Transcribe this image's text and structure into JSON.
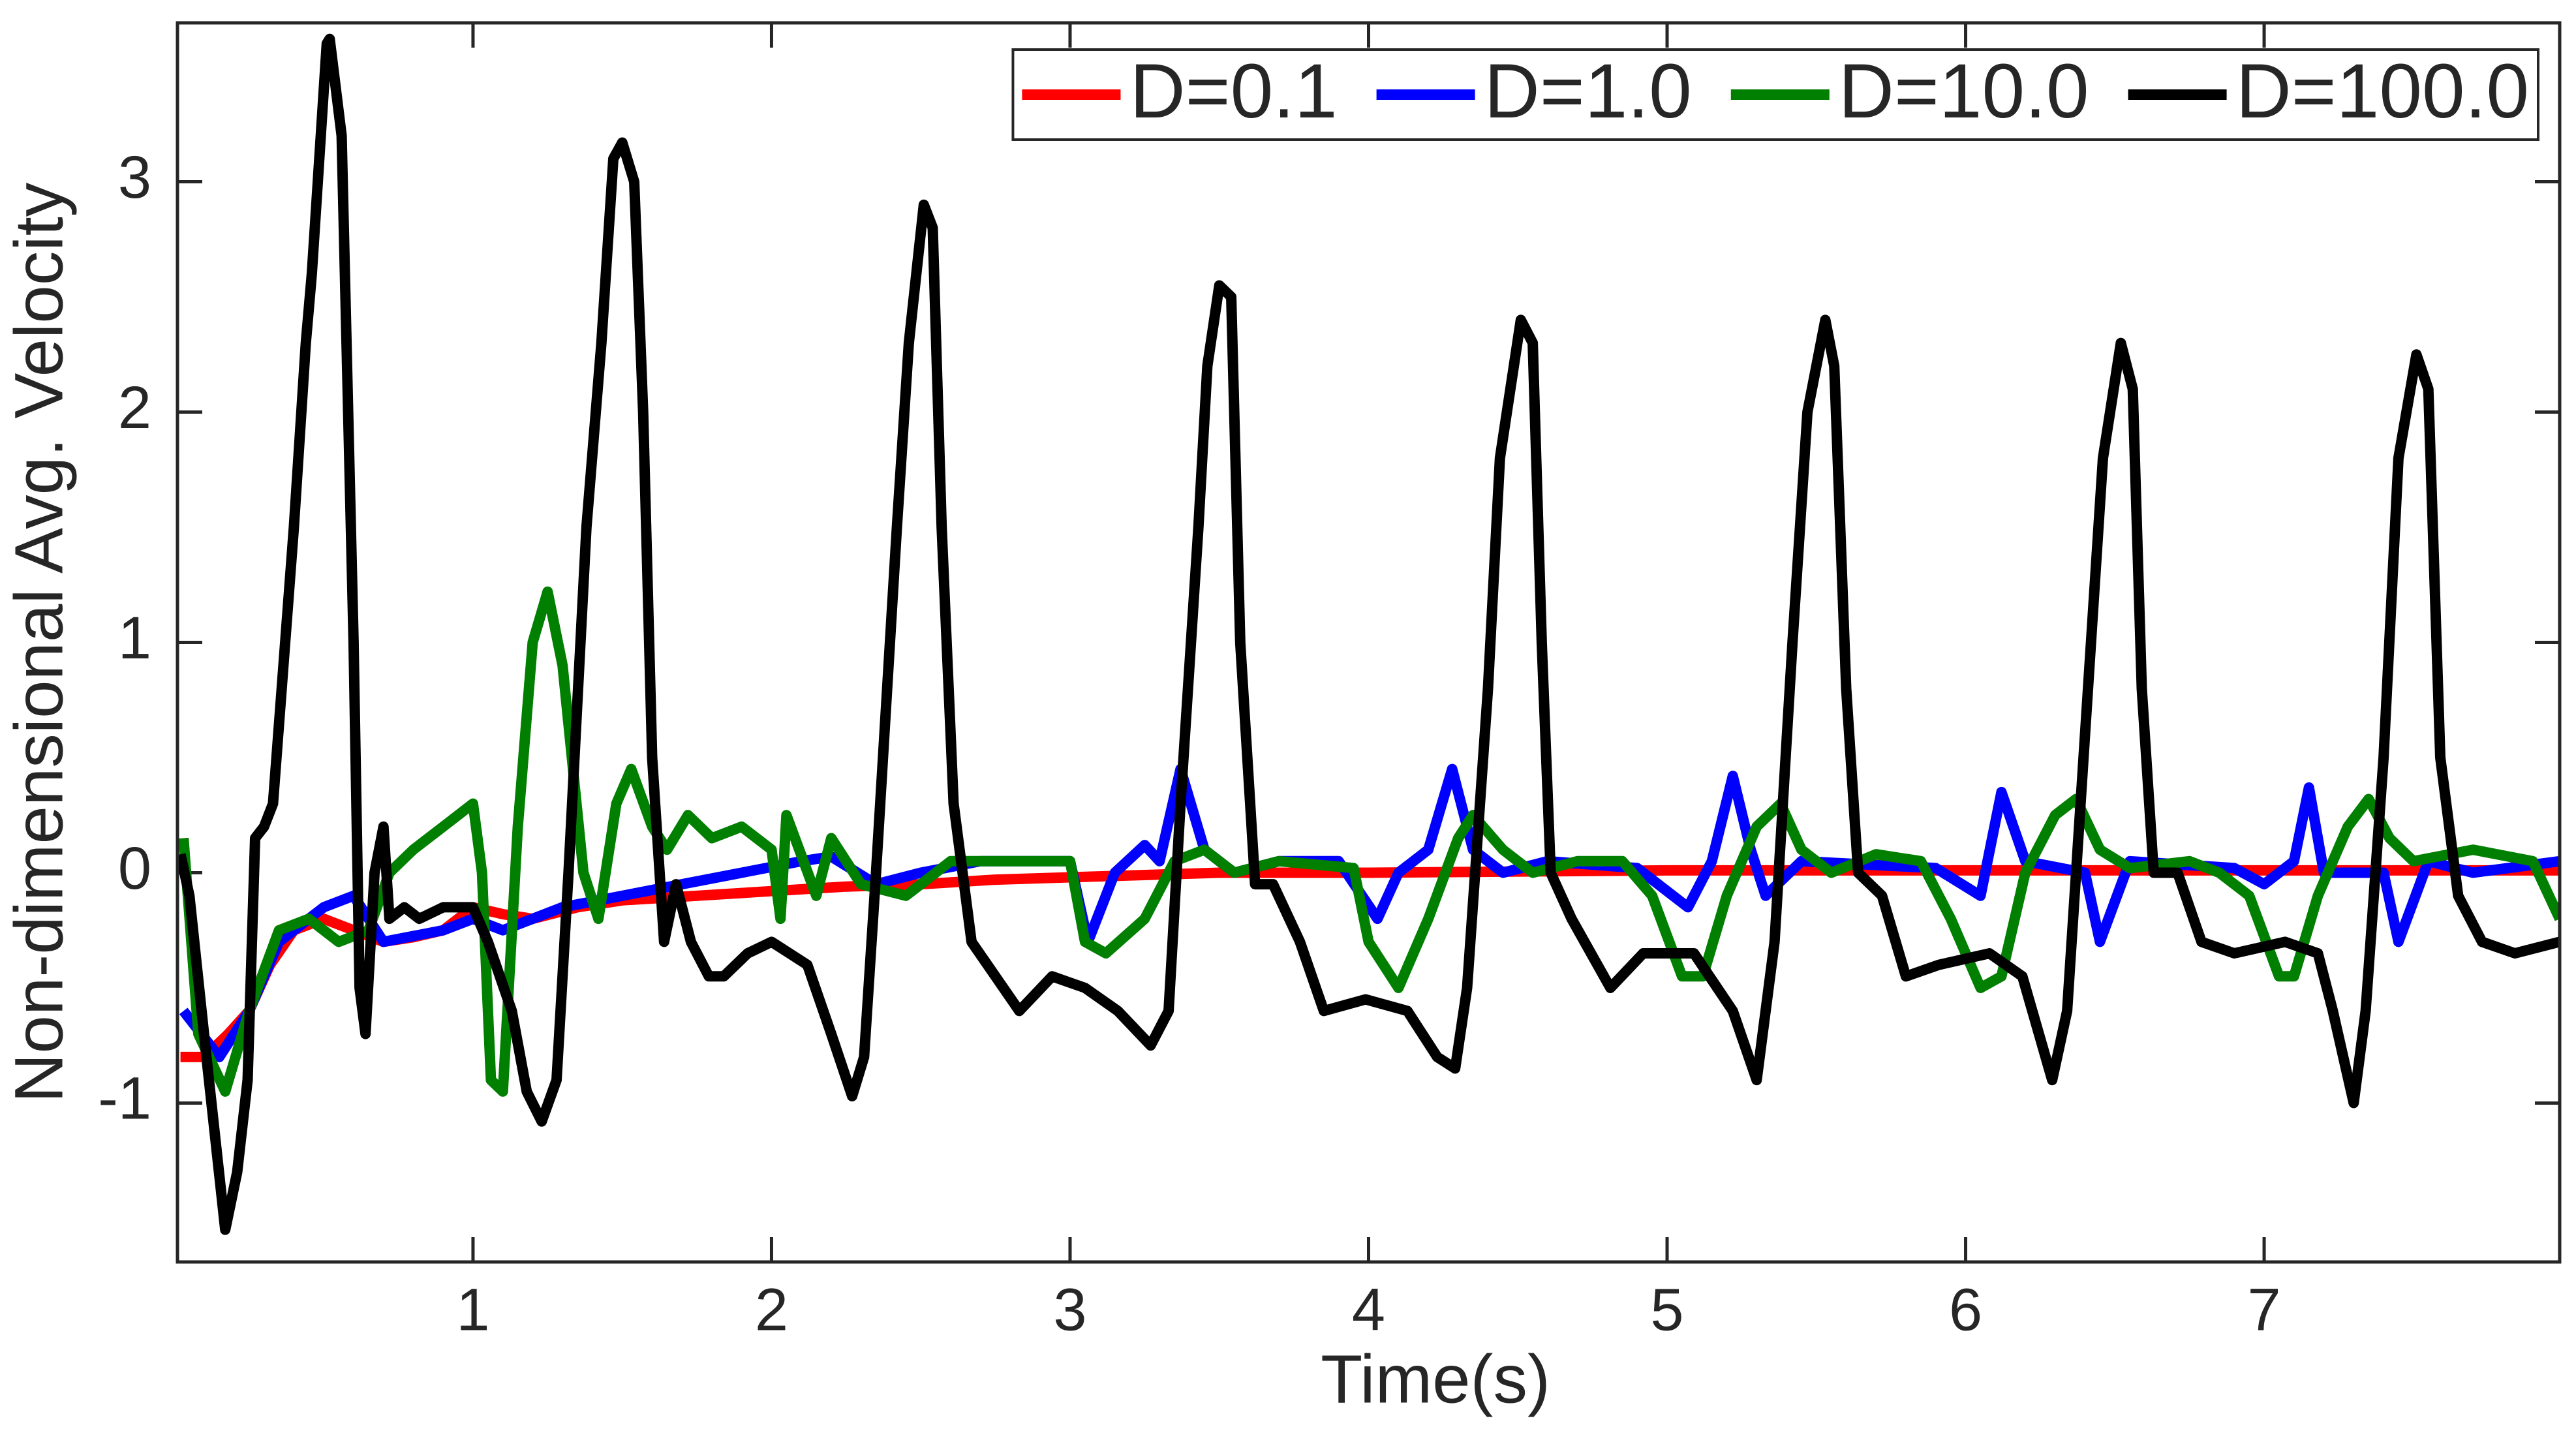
{
  "chart_data": {
    "type": "line",
    "xlabel": "Time(s)",
    "ylabel": "Non-dimensional Avg. Velocity",
    "xlim": [
      0.01,
      7.99
    ],
    "ylim": [
      -1.69,
      3.69
    ],
    "xticks": [
      1,
      2,
      3,
      4,
      5,
      6,
      7
    ],
    "yticks": [
      -1,
      0,
      1,
      2,
      3
    ],
    "grid": false,
    "legend": "upper right",
    "series": [
      {
        "name": "D=0.1",
        "color": "#ff0000",
        "x": [
          0.02,
          0.1,
          0.18,
          0.25,
          0.32,
          0.4,
          0.5,
          0.6,
          0.7,
          0.8,
          0.9,
          1.0,
          1.1,
          1.2,
          1.35,
          1.5,
          1.75,
          2.0,
          2.25,
          2.5,
          2.75,
          3.0,
          3.5,
          4.0,
          5.0,
          6.0,
          7.0,
          7.99
        ],
        "values": [
          -0.8,
          -0.8,
          -0.7,
          -0.6,
          -0.4,
          -0.25,
          -0.2,
          -0.25,
          -0.3,
          -0.28,
          -0.25,
          -0.15,
          -0.18,
          -0.2,
          -0.15,
          -0.12,
          -0.1,
          -0.08,
          -0.06,
          -0.05,
          -0.03,
          -0.02,
          0,
          0,
          0.01,
          0.01,
          0.01,
          0.01
        ]
      },
      {
        "name": "D=1.0",
        "color": "#0000ff",
        "x": [
          0.03,
          0.15,
          0.25,
          0.35,
          0.5,
          0.6,
          0.7,
          0.9,
          1.0,
          1.1,
          1.3,
          1.5,
          1.7,
          1.9,
          2.1,
          2.2,
          2.35,
          2.5,
          2.7,
          3.0,
          3.06,
          3.15,
          3.25,
          3.3,
          3.37,
          3.45,
          3.55,
          3.7,
          3.9,
          4.03,
          4.1,
          4.2,
          4.28,
          4.35,
          4.45,
          4.6,
          4.9,
          5.07,
          5.15,
          5.22,
          5.28,
          5.33,
          5.45,
          5.9,
          6.05,
          6.12,
          6.2,
          6.4,
          6.45,
          6.55,
          6.9,
          7.0,
          7.1,
          7.15,
          7.2,
          7.4,
          7.45,
          7.55,
          7.7,
          7.99
        ],
        "values": [
          -0.6,
          -0.8,
          -0.6,
          -0.3,
          -0.15,
          -0.1,
          -0.3,
          -0.25,
          -0.2,
          -0.25,
          -0.15,
          -0.1,
          -0.05,
          0,
          0.05,
          0.07,
          -0.05,
          0,
          0.05,
          0.05,
          -0.3,
          0,
          0.12,
          0.05,
          0.45,
          0.1,
          0,
          0.05,
          0.05,
          -0.2,
          0,
          0.1,
          0.45,
          0.1,
          0,
          0.05,
          0.02,
          -0.15,
          0.05,
          0.42,
          0.1,
          -0.1,
          0.05,
          0.02,
          -0.1,
          0.35,
          0.05,
          0,
          -0.3,
          0.05,
          0.02,
          -0.05,
          0.05,
          0.37,
          0,
          0,
          -0.3,
          0.05,
          0,
          0.05
        ]
      },
      {
        "name": "D=10.0",
        "color": "#007f00",
        "x": [
          0.03,
          0.08,
          0.17,
          0.25,
          0.35,
          0.45,
          0.55,
          0.65,
          0.72,
          0.8,
          0.9,
          1.0,
          1.03,
          1.06,
          1.1,
          1.15,
          1.2,
          1.25,
          1.3,
          1.37,
          1.42,
          1.48,
          1.53,
          1.6,
          1.65,
          1.72,
          1.8,
          1.9,
          2.0,
          2.03,
          2.05,
          2.15,
          2.2,
          2.3,
          2.45,
          2.6,
          2.8,
          3.0,
          3.05,
          3.12,
          3.25,
          3.35,
          3.45,
          3.55,
          3.7,
          3.95,
          4.0,
          4.1,
          4.2,
          4.3,
          4.35,
          4.45,
          4.55,
          4.7,
          4.85,
          4.95,
          5.05,
          5.12,
          5.2,
          5.3,
          5.38,
          5.45,
          5.55,
          5.7,
          5.85,
          5.95,
          6.05,
          6.12,
          6.2,
          6.3,
          6.37,
          6.45,
          6.55,
          6.75,
          6.85,
          6.95,
          7.05,
          7.1,
          7.18,
          7.28,
          7.35,
          7.42,
          7.5,
          7.7,
          7.9,
          7.99
        ],
        "values": [
          0.15,
          -0.7,
          -0.95,
          -0.6,
          -0.25,
          -0.2,
          -0.3,
          -0.25,
          0,
          0.1,
          0.2,
          0.3,
          0,
          -0.9,
          -0.95,
          0.2,
          1,
          1.22,
          0.9,
          0,
          -0.2,
          0.3,
          0.45,
          0.2,
          0.1,
          0.25,
          0.15,
          0.2,
          0.1,
          -0.2,
          0.25,
          -0.1,
          0.15,
          -0.05,
          -0.1,
          0.05,
          0.05,
          0.05,
          -0.3,
          -0.35,
          -0.2,
          0.05,
          0.1,
          0,
          0.05,
          0.02,
          -0.3,
          -0.5,
          -0.2,
          0.15,
          0.25,
          0.1,
          0,
          0.05,
          0.05,
          -0.1,
          -0.45,
          -0.45,
          -0.1,
          0.2,
          0.3,
          0.1,
          0,
          0.08,
          0.05,
          -0.2,
          -0.5,
          -0.45,
          0,
          0.25,
          0.32,
          0.1,
          0.02,
          0.05,
          0,
          -0.1,
          -0.45,
          -0.45,
          -0.1,
          0.2,
          0.32,
          0.15,
          0.05,
          0.1,
          0.05,
          -0.2
        ]
      },
      {
        "name": "D=100.0",
        "color": "#000000",
        "x": [
          0.02,
          0.05,
          0.107,
          0.17,
          0.21,
          0.245,
          0.27,
          0.3,
          0.33,
          0.4,
          0.44,
          0.46,
          0.51,
          0.52,
          0.56,
          0.6,
          0.62,
          0.64,
          0.67,
          0.7,
          0.72,
          0.77,
          0.82,
          0.9,
          1.0,
          1.05,
          1.13,
          1.18,
          1.23,
          1.28,
          1.32,
          1.38,
          1.43,
          1.47,
          1.5,
          1.54,
          1.57,
          1.6,
          1.64,
          1.68,
          1.73,
          1.79,
          1.84,
          1.92,
          2.0,
          2.12,
          2.2,
          2.27,
          2.31,
          2.35,
          2.42,
          2.46,
          2.51,
          2.54,
          2.57,
          2.61,
          2.67,
          2.83,
          2.94,
          3.05,
          3.16,
          3.27,
          3.33,
          3.37,
          3.43,
          3.46,
          3.5,
          3.54,
          3.57,
          3.62,
          3.68,
          3.77,
          3.85,
          3.99,
          4.13,
          4.23,
          4.29,
          4.33,
          4.4,
          4.44,
          4.51,
          4.55,
          4.58,
          4.61,
          4.68,
          4.81,
          4.92,
          5.09,
          5.22,
          5.3,
          5.36,
          5.42,
          5.47,
          5.53,
          5.56,
          5.6,
          5.64,
          5.72,
          5.8,
          5.91,
          6.08,
          6.19,
          6.29,
          6.34,
          6.41,
          6.46,
          6.52,
          6.56,
          6.59,
          6.63,
          6.71,
          6.79,
          6.9,
          7.07,
          7.18,
          7.23,
          7.3,
          7.34,
          7.4,
          7.45,
          7.51,
          7.55,
          7.59,
          7.65,
          7.73,
          7.84,
          7.99
        ],
        "values": [
          0.08,
          -0.1,
          -0.8,
          -1.55,
          -1.3,
          -0.9,
          0.15,
          0.2,
          0.3,
          1.5,
          2.3,
          2.6,
          3.6,
          3.62,
          3.2,
          1.0,
          -0.5,
          -0.7,
          0,
          0.2,
          -0.2,
          -0.15,
          -0.2,
          -0.15,
          -0.15,
          -0.3,
          -0.6,
          -0.95,
          -1.08,
          -0.9,
          0,
          1.5,
          2.3,
          3.1,
          3.17,
          3.0,
          2.0,
          0.5,
          -0.3,
          -0.05,
          -0.3,
          -0.45,
          -0.45,
          -0.35,
          -0.3,
          -0.4,
          -0.7,
          -0.97,
          -0.8,
          0,
          1.5,
          2.3,
          2.9,
          2.8,
          1.5,
          0.3,
          -0.3,
          -0.6,
          -0.45,
          -0.5,
          -0.6,
          -0.75,
          -0.6,
          0.3,
          1.5,
          2.2,
          2.55,
          2.5,
          1.0,
          -0.05,
          -0.05,
          -0.3,
          -0.6,
          -0.55,
          -0.6,
          -0.8,
          -0.85,
          -0.5,
          0.8,
          1.8,
          2.4,
          2.3,
          1.0,
          0,
          -0.2,
          -0.5,
          -0.35,
          -0.35,
          -0.6,
          -0.9,
          -0.3,
          1.0,
          2.0,
          2.4,
          2.2,
          0.8,
          0,
          -0.1,
          -0.45,
          -0.4,
          -0.35,
          -0.45,
          -0.9,
          -0.6,
          0.8,
          1.8,
          2.3,
          2.1,
          0.8,
          0,
          0,
          -0.3,
          -0.35,
          -0.3,
          -0.35,
          -0.6,
          -1.0,
          -0.6,
          0.5,
          1.8,
          2.25,
          2.1,
          0.5,
          -0.1,
          -0.3,
          -0.35,
          -0.3
        ]
      }
    ]
  }
}
